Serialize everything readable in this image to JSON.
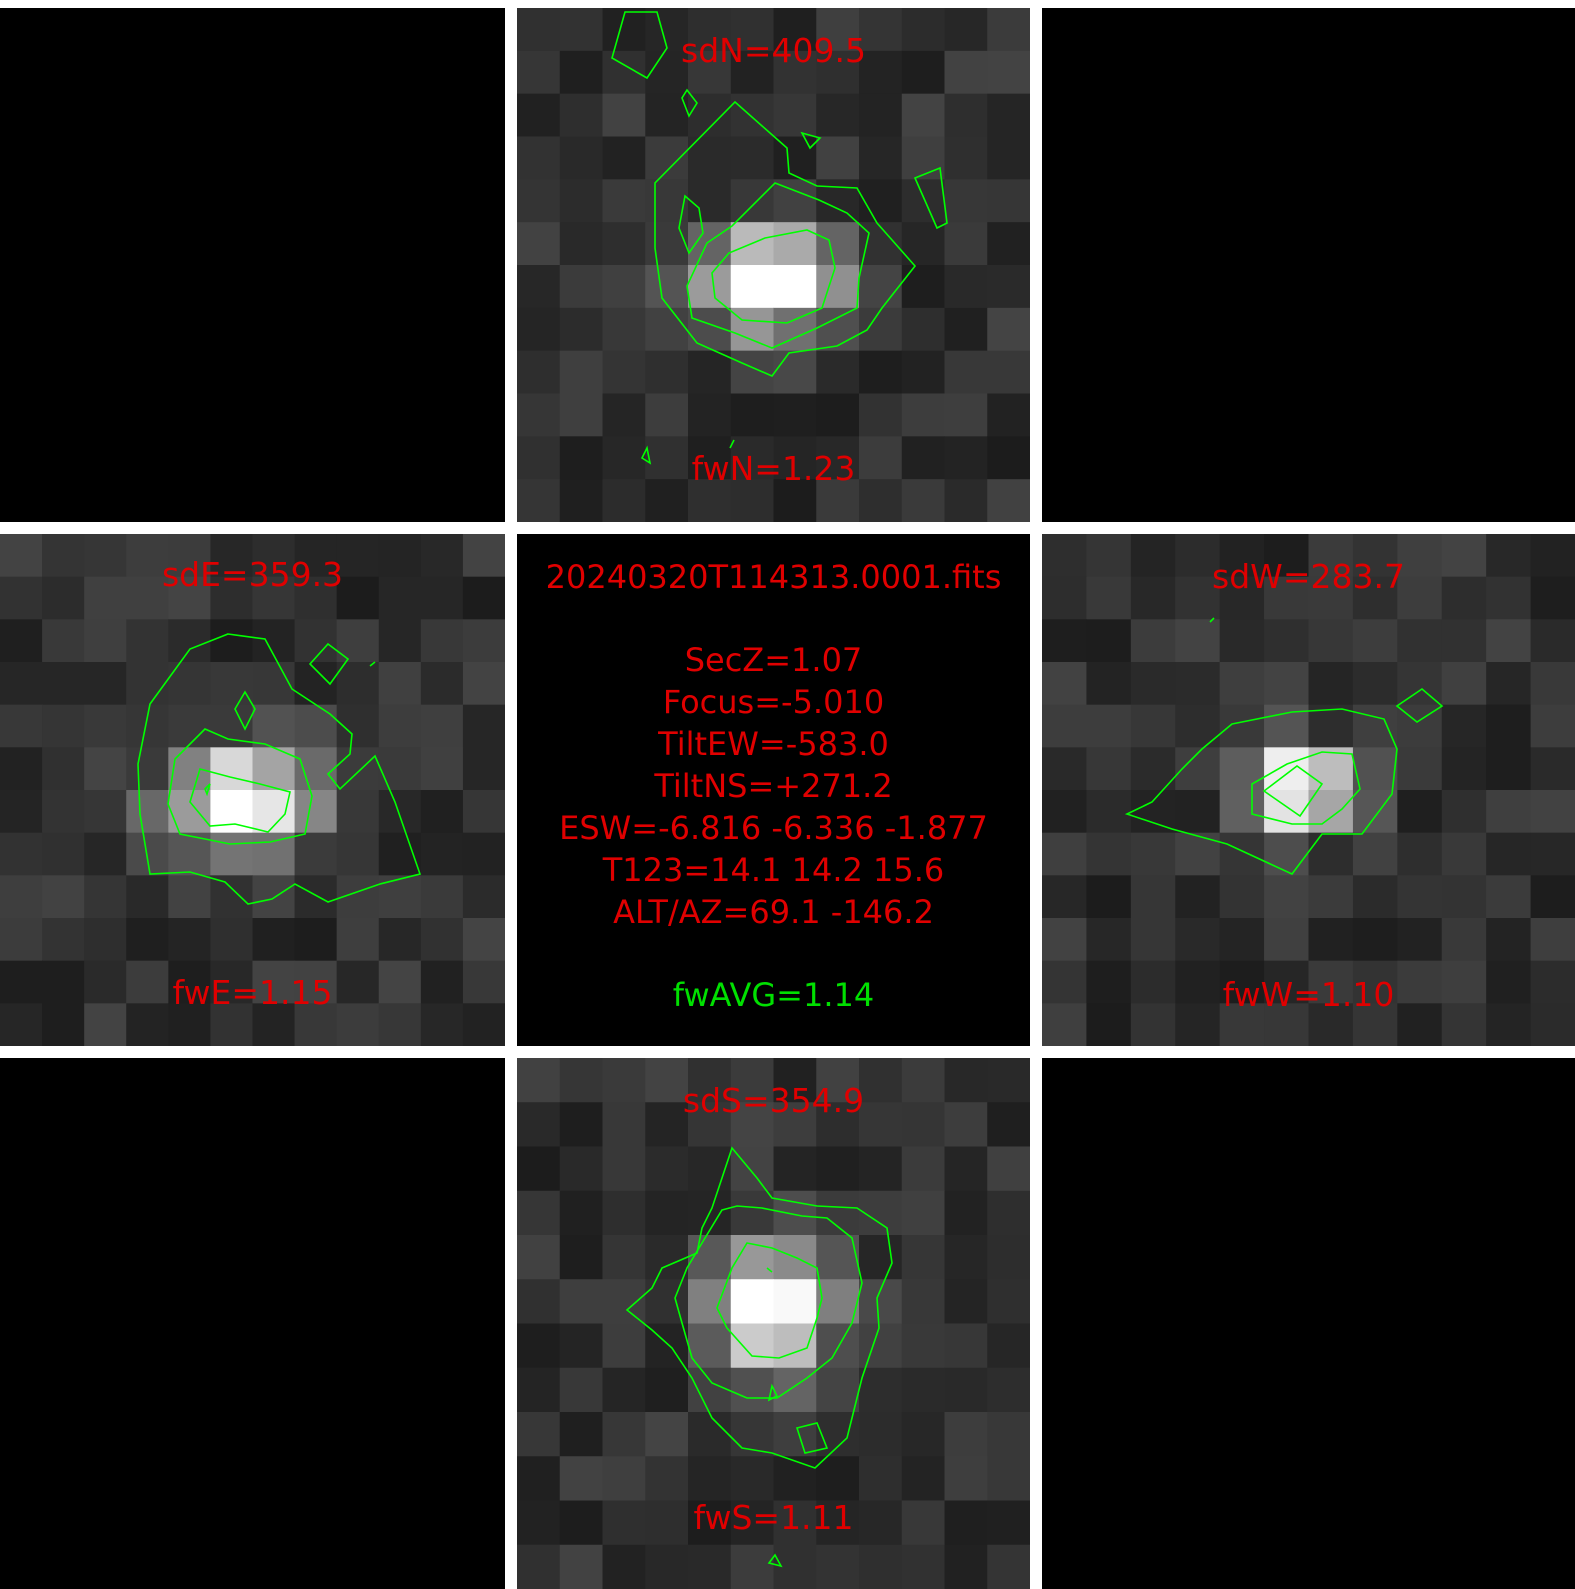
{
  "north": {
    "sd": "sdN=409.5",
    "fw": "fwN=1.23"
  },
  "east": {
    "sd": "sdE=359.3",
    "fw": "fwE=1.15"
  },
  "west": {
    "sd": "sdW=283.7",
    "fw": "fwW=1.10"
  },
  "south": {
    "sd": "sdS=354.9",
    "fw": "fwS=1.11"
  },
  "center": {
    "filename": "20240320T114313.0001.fits",
    "secz": "SecZ=1.07",
    "focus": "Focus=-5.010",
    "tiltew": "TiltEW=-583.0",
    "tiltns": "TiltNS=+271.2",
    "esw": "ESW=-6.816 -6.336 -1.877",
    "t123": "T123=14.1 14.2 15.6",
    "altaz": "ALT/AZ=69.1 -146.2",
    "fwavg": "fwAVG=1.14"
  },
  "colors": {
    "label": "#e00000",
    "avg": "#00e000",
    "contour": "#00ff00",
    "separator": "#ffffff"
  }
}
